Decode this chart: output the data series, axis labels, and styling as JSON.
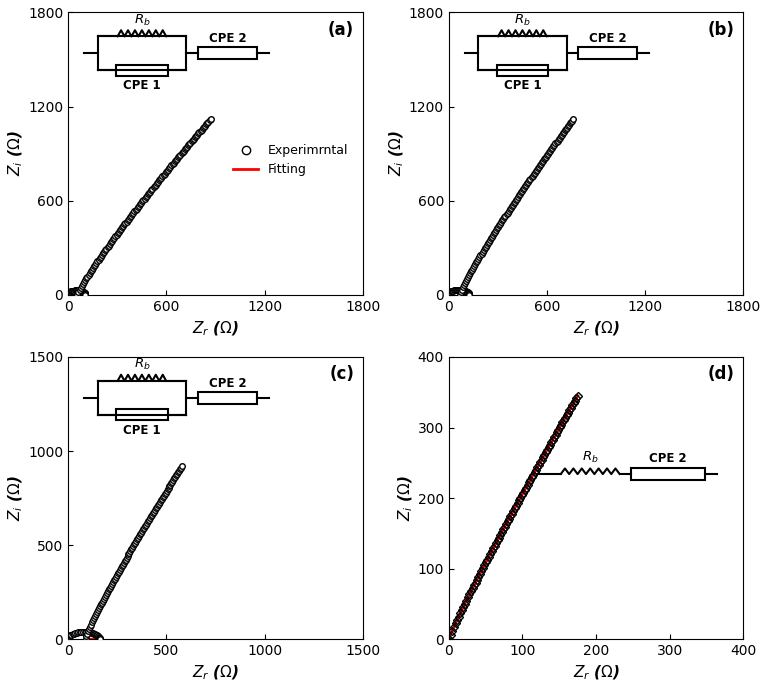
{
  "panels": [
    {
      "label": "(a)",
      "xlim": [
        0,
        1800
      ],
      "ylim": [
        0,
        1800
      ],
      "xticks": [
        0,
        600,
        1200,
        1800
      ],
      "yticks": [
        0,
        600,
        1200,
        1800
      ],
      "start_x": 50,
      "start_y": 0,
      "end_x": 870,
      "end_y": 1120,
      "hook_r": 55,
      "has_legend": true,
      "has_cpe1": true,
      "marker": "o",
      "n_pts": 120
    },
    {
      "label": "(b)",
      "xlim": [
        0,
        1800
      ],
      "ylim": [
        0,
        1800
      ],
      "xticks": [
        0,
        600,
        1200,
        1800
      ],
      "yticks": [
        0,
        600,
        1200,
        1800
      ],
      "start_x": 60,
      "start_y": 0,
      "end_x": 760,
      "end_y": 1120,
      "hook_r": 65,
      "has_legend": false,
      "has_cpe1": true,
      "marker": "o",
      "n_pts": 110
    },
    {
      "label": "(c)",
      "xlim": [
        0,
        1500
      ],
      "ylim": [
        0,
        1500
      ],
      "xticks": [
        0,
        500,
        1000,
        1500
      ],
      "yticks": [
        0,
        500,
        1000,
        1500
      ],
      "start_x": 80,
      "start_y": 0,
      "end_x": 580,
      "end_y": 920,
      "hook_r": 80,
      "has_legend": false,
      "has_cpe1": true,
      "marker": "o",
      "n_pts": 100
    },
    {
      "label": "(d)",
      "xlim": [
        0,
        400
      ],
      "ylim": [
        0,
        400
      ],
      "xticks": [
        0,
        100,
        200,
        300,
        400
      ],
      "yticks": [
        0,
        100,
        200,
        300,
        400
      ],
      "start_x": 0,
      "start_y": 0,
      "end_x": 175,
      "end_y": 345,
      "hook_r": 0,
      "has_legend": false,
      "has_cpe1": false,
      "marker": "D",
      "n_pts": 90
    }
  ],
  "xlabel": "$Z_r$ ($\\Omega$)",
  "ylabel": "$Z_i$ ($\\Omega$)",
  "exp_color": "black",
  "fit_color": "red",
  "fit_linewidth": 2.0,
  "legend_exp": "Experimrntal",
  "legend_fit": "Fitting"
}
